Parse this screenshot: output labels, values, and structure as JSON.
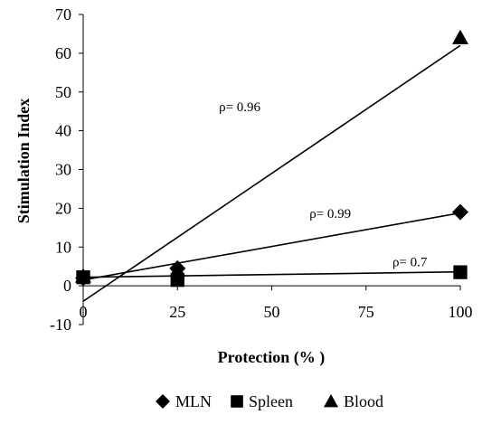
{
  "chart_data": {
    "type": "scatter",
    "title": "",
    "xlabel": "Protection (% )",
    "ylabel": "Stimulation Index",
    "xlim": [
      0,
      100
    ],
    "ylim": [
      -10,
      70
    ],
    "x_ticks": [
      "0",
      "25",
      "50",
      "75",
      "100"
    ],
    "y_ticks": [
      "-10",
      "0",
      "10",
      "20",
      "30",
      "40",
      "50",
      "60",
      "70"
    ],
    "legend_position": "bottom",
    "grid": false,
    "series": [
      {
        "name": "MLN",
        "marker": "diamond",
        "color": "#000000",
        "x": [
          0,
          25,
          100
        ],
        "y": [
          2,
          4.5,
          19
        ],
        "trendline": {
          "x": [
            0,
            100
          ],
          "y": [
            1.5,
            18.8
          ]
        },
        "annotation": {
          "text": "ρ= 0.99",
          "x": 60,
          "y": 17.5
        }
      },
      {
        "name": "Spleen",
        "marker": "square",
        "color": "#000000",
        "x": [
          0,
          25,
          100
        ],
        "y": [
          2.2,
          1.5,
          3.5
        ],
        "trendline": {
          "x": [
            0,
            100
          ],
          "y": [
            2.2,
            3.6
          ]
        },
        "annotation": {
          "text": "ρ= 0.7",
          "x": 82,
          "y": 5
        }
      },
      {
        "name": "Blood",
        "marker": "triangle",
        "color": "#000000",
        "x": [
          0,
          25,
          100
        ],
        "y": [
          2.5,
          4,
          64
        ],
        "trendline": {
          "x": [
            0,
            100
          ],
          "y": [
            -4,
            62
          ]
        },
        "annotation": {
          "text": "ρ= 0.96",
          "x": 36,
          "y": 45
        }
      }
    ]
  }
}
